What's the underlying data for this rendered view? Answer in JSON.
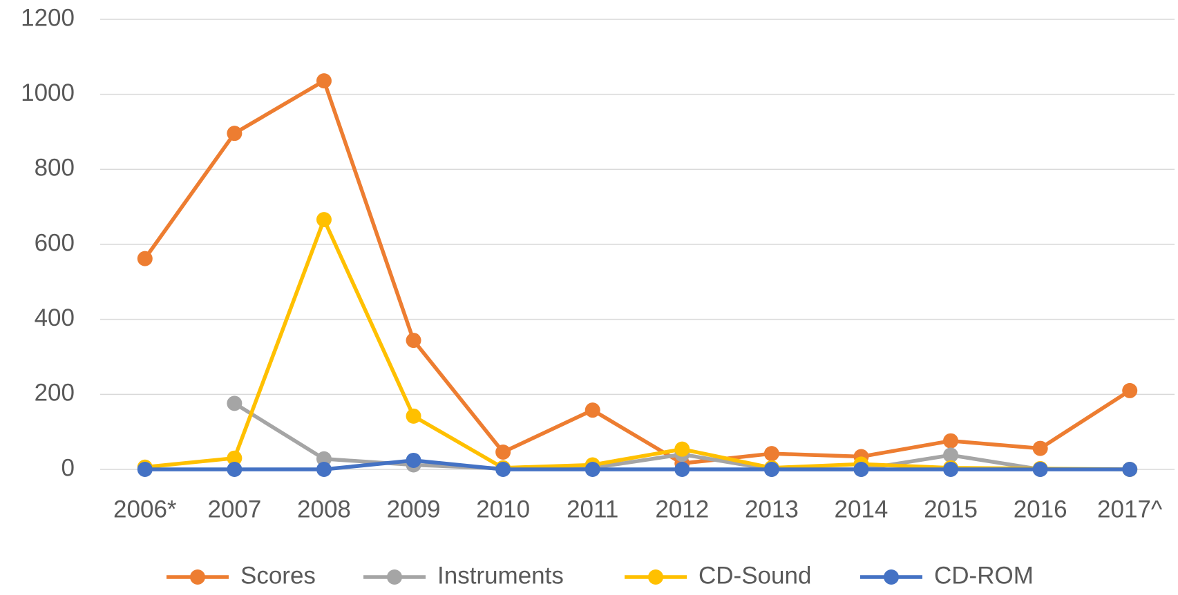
{
  "chart_data": {
    "type": "line",
    "categories": [
      "2006*",
      "2007",
      "2008",
      "2009",
      "2010",
      "2011",
      "2012",
      "2013",
      "2014",
      "2015",
      "2016",
      "2017^"
    ],
    "series": [
      {
        "name": "Scores",
        "color": "#ed7d31",
        "values": [
          562,
          896,
          1036,
          344,
          46,
          158,
          16,
          42,
          34,
          76,
          56,
          210
        ]
      },
      {
        "name": "Instruments",
        "color": "#a5a5a5",
        "values": [
          null,
          176,
          28,
          12,
          2,
          4,
          40,
          0,
          0,
          38,
          0,
          null
        ]
      },
      {
        "name": "CD-Sound",
        "color": "#ffc000",
        "values": [
          6,
          30,
          666,
          142,
          4,
          12,
          54,
          4,
          14,
          4,
          2,
          0
        ]
      },
      {
        "name": "CD-ROM",
        "color": "#4472c4",
        "values": [
          0,
          0,
          0,
          24,
          0,
          0,
          0,
          0,
          0,
          0,
          0,
          0
        ]
      }
    ],
    "ylim": [
      0,
      1200
    ],
    "yticks": [
      0,
      200,
      400,
      600,
      800,
      1000,
      1200
    ],
    "grid": true,
    "legend": "bottom"
  }
}
